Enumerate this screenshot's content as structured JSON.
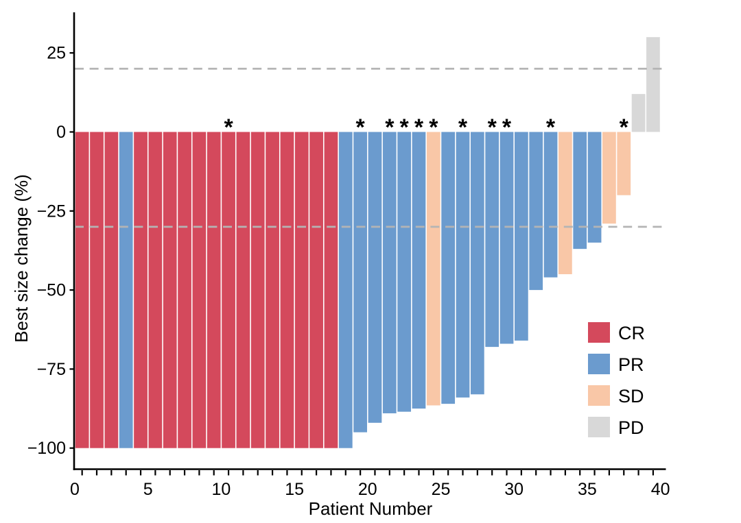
{
  "chart_data": {
    "type": "bar",
    "subtype": "waterfall",
    "title": "",
    "xlabel": "Patient Number",
    "ylabel": "Best size change (%)",
    "xlim": [
      0,
      40.4
    ],
    "ylim": [
      -106.5,
      36.5
    ],
    "grid": false,
    "legend_position": "inside-right",
    "reference_lines_y": [
      20,
      -30
    ],
    "x_ticks": [
      {
        "value": 0,
        "label": "0"
      },
      {
        "value": 5,
        "label": "5"
      },
      {
        "value": 10,
        "label": "10"
      },
      {
        "value": 15,
        "label": "15"
      },
      {
        "value": 20,
        "label": "20"
      },
      {
        "value": 25,
        "label": "25"
      },
      {
        "value": 30,
        "label": "30"
      },
      {
        "value": 35,
        "label": "35"
      },
      {
        "value": 40,
        "label": "40"
      }
    ],
    "y_ticks": [
      {
        "value": 25,
        "label": "25"
      },
      {
        "value": 0,
        "label": "0"
      },
      {
        "value": -25,
        "label": "−25"
      },
      {
        "value": -50,
        "label": "−50"
      },
      {
        "value": -75,
        "label": "−75"
      },
      {
        "value": -100,
        "label": "−100"
      }
    ],
    "starred_patients": [
      11,
      20,
      22,
      23,
      24,
      25,
      27,
      29,
      30,
      33,
      38
    ],
    "star_symbol": "*",
    "patients": [
      {
        "n": 1,
        "value": -100,
        "response": "CR",
        "star": false
      },
      {
        "n": 2,
        "value": -100,
        "response": "CR",
        "star": false
      },
      {
        "n": 3,
        "value": -100,
        "response": "CR",
        "star": false
      },
      {
        "n": 4,
        "value": -100,
        "response": "PR",
        "star": false
      },
      {
        "n": 5,
        "value": -100,
        "response": "CR",
        "star": false
      },
      {
        "n": 6,
        "value": -100,
        "response": "CR",
        "star": false
      },
      {
        "n": 7,
        "value": -100,
        "response": "CR",
        "star": false
      },
      {
        "n": 8,
        "value": -100,
        "response": "CR",
        "star": false
      },
      {
        "n": 9,
        "value": -100,
        "response": "CR",
        "star": false
      },
      {
        "n": 10,
        "value": -100,
        "response": "CR",
        "star": false
      },
      {
        "n": 11,
        "value": -100,
        "response": "CR",
        "star": true
      },
      {
        "n": 12,
        "value": -100,
        "response": "CR",
        "star": false
      },
      {
        "n": 13,
        "value": -100,
        "response": "CR",
        "star": false
      },
      {
        "n": 14,
        "value": -100,
        "response": "CR",
        "star": false
      },
      {
        "n": 15,
        "value": -100,
        "response": "CR",
        "star": false
      },
      {
        "n": 16,
        "value": -100,
        "response": "CR",
        "star": false
      },
      {
        "n": 17,
        "value": -100,
        "response": "CR",
        "star": false
      },
      {
        "n": 18,
        "value": -100,
        "response": "CR",
        "star": false
      },
      {
        "n": 19,
        "value": -100,
        "response": "PR",
        "star": false
      },
      {
        "n": 20,
        "value": -95,
        "response": "PR",
        "star": true
      },
      {
        "n": 21,
        "value": -92,
        "response": "PR",
        "star": false
      },
      {
        "n": 22,
        "value": -89,
        "response": "PR",
        "star": true
      },
      {
        "n": 23,
        "value": -88.5,
        "response": "PR",
        "star": true
      },
      {
        "n": 24,
        "value": -87.5,
        "response": "PR",
        "star": true
      },
      {
        "n": 25,
        "value": -86.5,
        "response": "SD",
        "star": true
      },
      {
        "n": 26,
        "value": -86,
        "response": "PR",
        "star": false
      },
      {
        "n": 27,
        "value": -84,
        "response": "PR",
        "star": true
      },
      {
        "n": 28,
        "value": -83,
        "response": "PR",
        "star": false
      },
      {
        "n": 29,
        "value": -68,
        "response": "PR",
        "star": true
      },
      {
        "n": 30,
        "value": -67,
        "response": "PR",
        "star": true
      },
      {
        "n": 31,
        "value": -66,
        "response": "PR",
        "star": false
      },
      {
        "n": 32,
        "value": -50,
        "response": "PR",
        "star": false
      },
      {
        "n": 33,
        "value": -46,
        "response": "PR",
        "star": true
      },
      {
        "n": 34,
        "value": -45,
        "response": "SD",
        "star": false
      },
      {
        "n": 35,
        "value": -37,
        "response": "PR",
        "star": false
      },
      {
        "n": 36,
        "value": -35,
        "response": "PR",
        "star": false
      },
      {
        "n": 37,
        "value": -29,
        "response": "SD",
        "star": false
      },
      {
        "n": 38,
        "value": -20,
        "response": "SD",
        "star": true
      },
      {
        "n": 39,
        "value": 12,
        "response": "PD",
        "star": false
      },
      {
        "n": 40,
        "value": 30,
        "response": "PD",
        "star": false
      }
    ],
    "legend": [
      {
        "label": "CR",
        "color": "#d4495c"
      },
      {
        "label": "PR",
        "color": "#6b9bce"
      },
      {
        "label": "SD",
        "color": "#f9c7a7"
      },
      {
        "label": "PD",
        "color": "#d8d8d8"
      }
    ],
    "colors": {
      "CR": "#d4495c",
      "PR": "#6b9bce",
      "SD": "#f9c7a7",
      "PD": "#d8d8d8",
      "reference_dash": "#b4b4b4",
      "axis": "#000000"
    }
  }
}
